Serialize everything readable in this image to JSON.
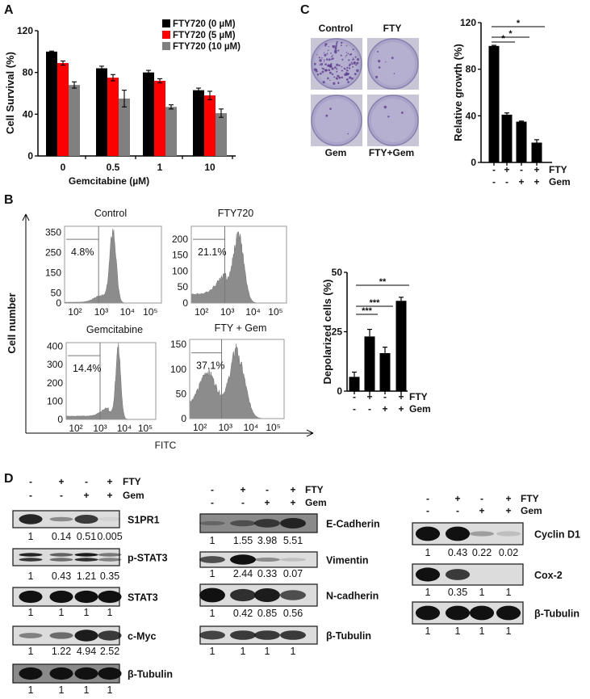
{
  "panel_labels": {
    "a": "A",
    "b": "B",
    "c": "C",
    "d": "D"
  },
  "chart_data": [
    {
      "id": "A",
      "type": "bar",
      "title": "",
      "xlabel": "Gemcitabine (µM)",
      "ylabel": "Cell Survival (%)",
      "ylim": [
        0,
        120
      ],
      "yticks": [
        "0",
        "40",
        "80",
        "120"
      ],
      "categories": [
        "0",
        "0.5",
        "1",
        "10"
      ],
      "legend": "top-right",
      "series": [
        {
          "name": "FTY720  (0 µM)",
          "color": "#000000",
          "values": [
            100,
            84,
            80,
            63
          ],
          "errors": [
            0.5,
            2,
            2,
            2
          ]
        },
        {
          "name": "FTY720  (5 µM)",
          "color": "#ff0000",
          "values": [
            89,
            75,
            72,
            58
          ],
          "errors": [
            2,
            3,
            2,
            4
          ]
        },
        {
          "name": "FTY720  (10 µM)",
          "color": "#808080",
          "values": [
            68,
            55,
            47,
            41
          ],
          "errors": [
            3,
            8,
            2,
            4
          ]
        }
      ]
    },
    {
      "id": "C",
      "type": "bar",
      "ylabel": "Relative growth (%)",
      "ylim": [
        0,
        120
      ],
      "yticks": [
        "0",
        "40",
        "80",
        "120"
      ],
      "values": [
        100,
        41,
        35,
        17
      ],
      "errors": [
        0.5,
        1.5,
        0.5,
        2.5
      ],
      "color": "#000000",
      "fty": [
        "-",
        "+",
        "-",
        "+"
      ],
      "gem": [
        "-",
        "-",
        "+",
        "+"
      ],
      "row_labels": [
        "FTY",
        "Gem"
      ],
      "significance": [
        {
          "from": 0,
          "to": 1,
          "label": "*"
        },
        {
          "from": 0,
          "to": 2,
          "label": "*"
        },
        {
          "from": 0,
          "to": 3,
          "label": "*"
        }
      ]
    },
    {
      "id": "B-bar",
      "type": "bar",
      "ylabel": "Depolarized cells (%)",
      "ylim": [
        0,
        50
      ],
      "yticks": [
        "0",
        "25",
        "50"
      ],
      "values": [
        6,
        23,
        16,
        38
      ],
      "errors": [
        2,
        3,
        2.5,
        1.5
      ],
      "color": "#000000",
      "fty": [
        "-",
        "+",
        "-",
        "+"
      ],
      "gem": [
        "-",
        "-",
        "+",
        "+"
      ],
      "row_labels": [
        "FTY",
        "Gem"
      ],
      "significance": [
        {
          "from": 0,
          "to": 1,
          "label": "***"
        },
        {
          "from": 0,
          "to": 2,
          "label": "***"
        },
        {
          "from": 0,
          "to": 3,
          "label": "**"
        }
      ]
    },
    {
      "id": "B-flow",
      "type": "histogram",
      "xlabel": "FITC",
      "ylabel": "Cell number",
      "fill": "#8c8c8c",
      "xlim_log10": [
        1.6,
        5.3
      ],
      "plots": [
        {
          "title": "Control",
          "gate_pct": "4.8%",
          "gate_log10": 2.9,
          "ymax": 380,
          "yticks": [
            {
              "v": 0,
              "t": "0"
            },
            {
              "v": 50,
              "t": "50"
            },
            {
              "v": 150,
              "t": "150"
            },
            {
              "v": 250,
              "t": "250"
            },
            {
              "v": 350,
              "t": "350"
            }
          ],
          "xticks": [
            "10²",
            "10³",
            "10⁴",
            "10⁵"
          ],
          "baseline": 4,
          "peaks": [
            [
              3.45,
              350,
              0.12
            ],
            [
              3.05,
              35,
              0.3
            ]
          ]
        },
        {
          "title": "FTY720",
          "gate_pct": "21.1%",
          "gate_log10": 2.9,
          "ymax": 240,
          "yticks": [
            {
              "v": 0,
              "t": "0"
            },
            {
              "v": 50,
              "t": "50"
            },
            {
              "v": 100,
              "t": "100"
            },
            {
              "v": 150,
              "t": "150"
            },
            {
              "v": 200,
              "t": "200"
            }
          ],
          "xticks": [
            "10²",
            "10³",
            "10⁴",
            "10⁵"
          ],
          "baseline": 28,
          "peaks": [
            [
              3.45,
              190,
              0.2
            ],
            [
              2.95,
              60,
              0.35
            ]
          ]
        },
        {
          "title": "Gemcitabine",
          "gate_pct": "14.4%",
          "gate_log10": 3.0,
          "ymax": 420,
          "yticks": [
            {
              "v": 0,
              "t": "0"
            },
            {
              "v": 100,
              "t": "100"
            },
            {
              "v": 200,
              "t": "200"
            },
            {
              "v": 300,
              "t": "300"
            },
            {
              "v": 400,
              "t": "400"
            }
          ],
          "xticks": [
            "10²",
            "10³",
            "10⁴",
            "10⁵"
          ],
          "baseline": 18,
          "peaks": [
            [
              3.75,
              380,
              0.1
            ],
            [
              3.35,
              45,
              0.3
            ]
          ]
        },
        {
          "title": "FTY  + Gem",
          "gate_pct": "37.1%",
          "gate_log10": 2.85,
          "ymax": 160,
          "yticks": [
            {
              "v": 0,
              "t": "0"
            },
            {
              "v": 50,
              "t": "50"
            },
            {
              "v": 100,
              "t": "100"
            },
            {
              "v": 150,
              "t": "150"
            }
          ],
          "xticks": [
            "10²",
            "10³",
            "10⁴",
            "10⁵"
          ],
          "baseline": 30,
          "peaks": [
            [
              2.3,
              65,
              0.3
            ],
            [
              3.5,
              120,
              0.28
            ]
          ]
        }
      ]
    }
  ],
  "colony_assay": {
    "plates": [
      {
        "label": "Control",
        "colony_density": 0.9
      },
      {
        "label": "FTY",
        "colony_density": 0.05
      },
      {
        "label": "Gem",
        "colony_density": 0.02
      },
      {
        "label": "FTY+Gem",
        "colony_density": 0.02
      }
    ]
  },
  "western_blots": [
    {
      "header": {
        "fty": [
          "-",
          "+",
          "-",
          "+"
        ],
        "gem": [
          "-",
          "-",
          "+",
          "+"
        ],
        "fty_label": "FTY",
        "gem_label": "Gem"
      },
      "rows": [
        {
          "protein": "S1PR1",
          "quant": [
            "1",
            "0.14",
            "0.51",
            "0.005"
          ],
          "bands": [
            0.9,
            0.4,
            0.8,
            0.05
          ]
        },
        {
          "protein": "p-STAT3",
          "quant": [
            "1",
            "0.43",
            "1.21",
            "0.35"
          ],
          "bands": [
            0.9,
            0.6,
            0.95,
            0.5
          ],
          "doublet": true
        },
        {
          "protein": "STAT3",
          "quant": [
            "1",
            "1",
            "1",
            "1"
          ],
          "bands": [
            1,
            1,
            1,
            1
          ]
        },
        {
          "protein": "c-Myc",
          "quant": [
            "1",
            "1.22",
            "4.94",
            "2.52"
          ],
          "bands": [
            0.45,
            0.55,
            0.95,
            0.8
          ]
        },
        {
          "protein": "β-Tubulin",
          "quant": [
            "1",
            "1",
            "1",
            "1"
          ],
          "bands": [
            1,
            1,
            1,
            1
          ],
          "dark_bg": true
        }
      ]
    },
    {
      "header": {
        "fty": [
          "-",
          "+",
          "-",
          "+"
        ],
        "gem": [
          "-",
          "-",
          "+",
          "+"
        ],
        "fty_label": "FTY",
        "gem_label": "Gem"
      },
      "rows": [
        {
          "protein": "E-Cadherin",
          "quant": [
            "1",
            "1.55",
            "3.98",
            "5.51"
          ],
          "bands": [
            0.3,
            0.5,
            0.7,
            0.85
          ],
          "dark_bg": true
        },
        {
          "protein": "Vimentin",
          "quant": [
            "1",
            "2.44",
            "0.33",
            "0.07"
          ],
          "bands": [
            0.7,
            1,
            0.4,
            0.15
          ]
        },
        {
          "protein": "N-cadherin",
          "quant": [
            "1",
            "0.42",
            "0.85",
            "0.56"
          ],
          "bands": [
            1,
            0.85,
            0.95,
            0.7
          ]
        },
        {
          "protein": "β-Tubulin",
          "quant": [
            "1",
            "1",
            "1",
            "1"
          ],
          "bands": [
            0.75,
            0.8,
            0.8,
            0.8
          ]
        }
      ]
    },
    {
      "header": {
        "fty": [
          "-",
          "+",
          "-",
          "+"
        ],
        "gem": [
          "-",
          "-",
          "+",
          "+"
        ],
        "fty_label": "FTY",
        "gem_label": "Gem"
      },
      "rows": [
        {
          "protein": "Cyclin D1",
          "quant": [
            "1",
            "0.43",
            "0.22",
            "0.02"
          ],
          "bands": [
            1,
            1,
            0.3,
            0.15
          ]
        },
        {
          "protein": "Cox-2",
          "quant": [
            "1",
            "0.35",
            "1",
            "1"
          ],
          "bands": [
            1,
            0.8,
            0,
            0
          ]
        },
        {
          "protein": "β-Tubulin",
          "quant": [
            "1",
            "1",
            "1",
            "1"
          ],
          "bands": [
            1,
            1,
            1,
            1
          ]
        }
      ]
    }
  ]
}
